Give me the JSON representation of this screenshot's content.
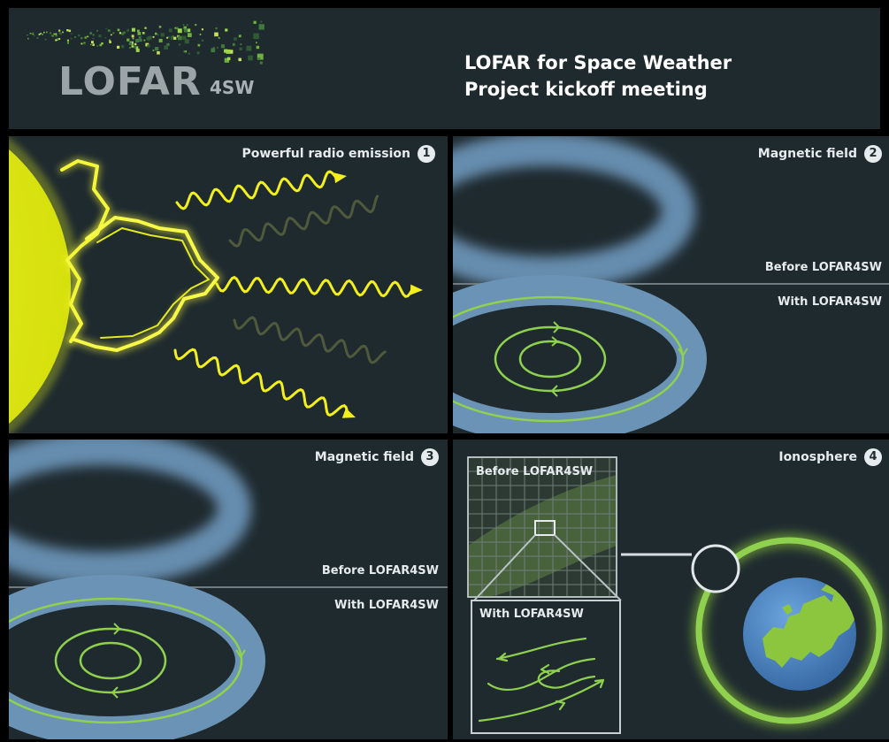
{
  "header": {
    "logo": {
      "word": "LOFAR",
      "suffix": "4SW"
    },
    "title_line1": "LOFAR for Space Weather",
    "title_line2": "Project kickoff meeting"
  },
  "panels": {
    "radio": {
      "title": "Powerful radio emission",
      "number": "1"
    },
    "magnetic_top": {
      "title": "Magnetic field",
      "number": "2",
      "before": "Before LOFAR4SW",
      "with": "With LOFAR4SW"
    },
    "magnetic_bottom": {
      "title": "Magnetic field",
      "number": "3",
      "before": "Before LOFAR4SW",
      "with": "With LOFAR4SW"
    },
    "ionosphere": {
      "title": "Ionosphere",
      "number": "4",
      "before": "Before LOFAR4SW",
      "with": "With LOFAR4SW"
    }
  },
  "colors": {
    "panel_bg": "#1f2a2f",
    "sun": "#e8f010",
    "wave_bright": "#f2ef1c",
    "wave_dim": "#4f5a3c",
    "field_blue": "#6a93b5",
    "field_line": "#8fd14f",
    "earth_ocean": "#4f86c6",
    "earth_land": "#8cc63f",
    "glow": "#9fe33c"
  },
  "icons": [
    "logo-dots-icon",
    "sun-icon",
    "flare-loop-icon",
    "wave-arrow-icon",
    "magnetic-loop-icon",
    "earth-icon",
    "magnifier-circle-icon"
  ]
}
